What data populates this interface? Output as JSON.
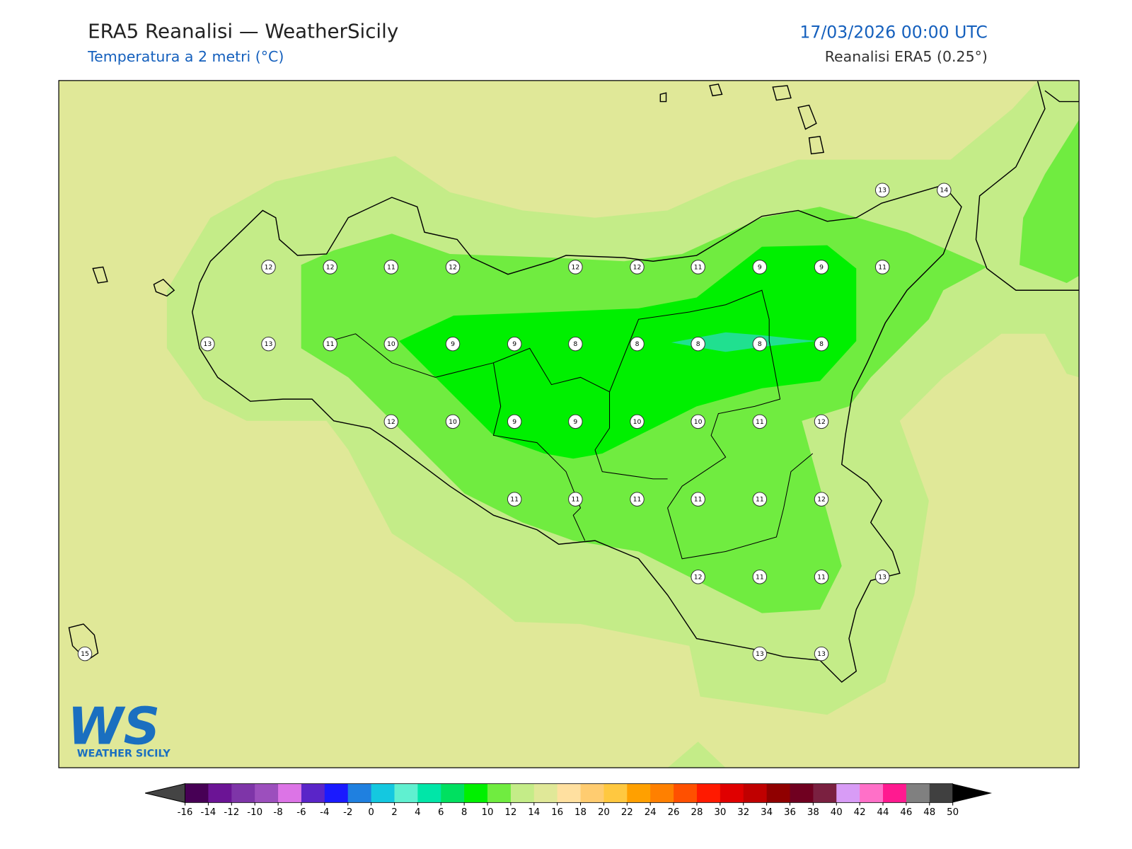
{
  "header": {
    "title": "ERA5 Reanalisi — WeatherSicily",
    "subtitle": "Temperatura a 2 metri (°C)",
    "date": "17/03/2026 00:00 UTC",
    "source": "Reanalisi ERA5 (0.25°)"
  },
  "points": [
    12,
    12,
    11,
    12,
    12,
    12,
    11,
    9,
    9,
    11,
    13,
    13,
    11,
    10,
    9,
    9,
    8,
    8,
    8,
    8,
    8,
    12,
    10,
    9,
    9,
    10,
    10,
    11,
    12,
    11,
    11,
    11,
    11,
    11,
    12,
    12,
    11,
    11,
    13,
    13,
    13,
    15,
    13,
    14
  ],
  "logo": {
    "mark": "WS",
    "name": "WEATHER SICILY"
  },
  "colorbar": {
    "ticks": [
      -16,
      -14,
      -12,
      -10,
      -8,
      -6,
      -4,
      -2,
      0,
      2,
      4,
      6,
      8,
      10,
      12,
      14,
      16,
      18,
      20,
      22,
      24,
      26,
      28,
      30,
      32,
      34,
      36,
      38,
      40,
      42,
      44,
      46,
      48,
      50
    ],
    "colors": [
      "#470055",
      "#6b1495",
      "#7e35a8",
      "#9c4fbd",
      "#dc74e6",
      "#5a25c8",
      "#1a1aff",
      "#1f80e0",
      "#14c8e0",
      "#60f0d0",
      "#00e6a8",
      "#00e060",
      "#00f000",
      "#70ec40",
      "#c4ec88",
      "#e0e898",
      "#ffe0a0",
      "#ffcc70",
      "#ffc840",
      "#ffa000",
      "#ff8000",
      "#ff5000",
      "#ff1a00",
      "#e00000",
      "#c00000",
      "#900000",
      "#700020",
      "#7a2040",
      "#d89cf6",
      "#ff70c8",
      "#ff1a90",
      "#808080",
      "#404040"
    ]
  }
}
